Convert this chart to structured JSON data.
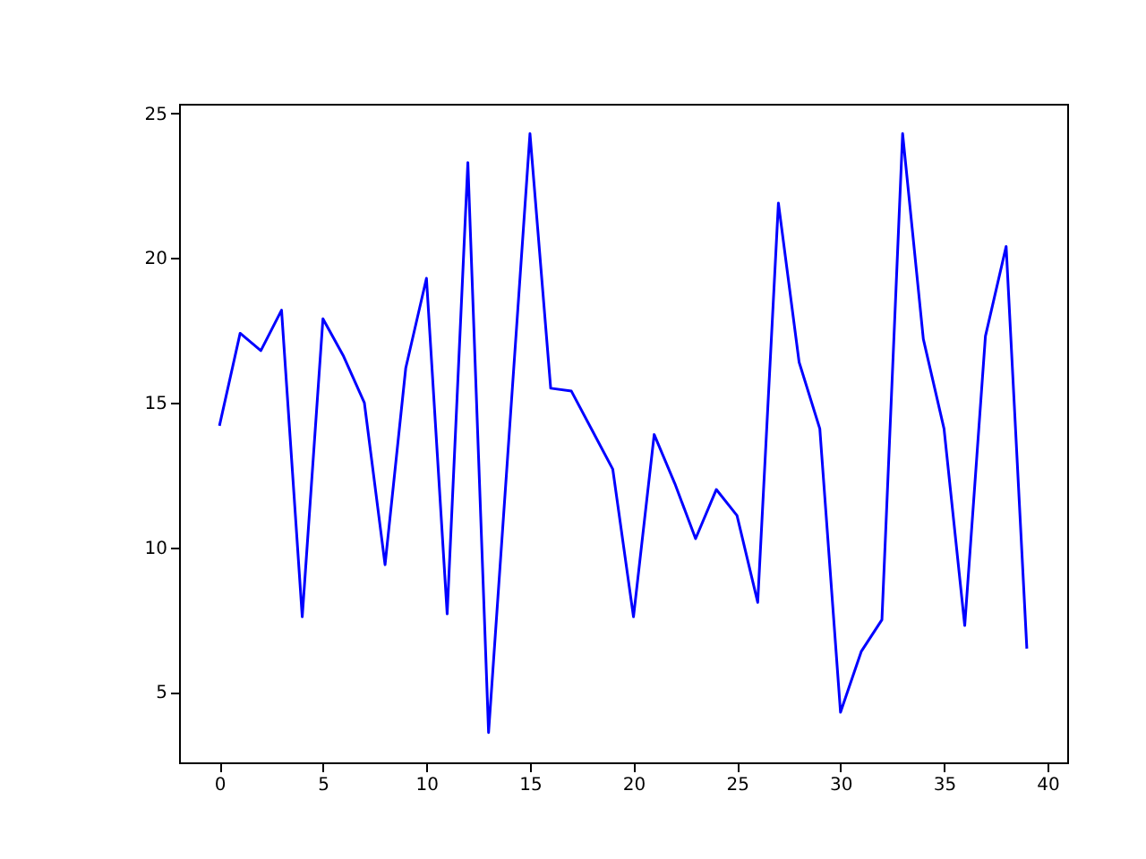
{
  "chart_data": {
    "type": "line",
    "x": [
      0,
      1,
      2,
      3,
      4,
      5,
      6,
      7,
      8,
      9,
      10,
      11,
      12,
      13,
      14,
      15,
      16,
      17,
      18,
      19,
      20,
      21,
      22,
      23,
      24,
      25,
      26,
      27,
      28,
      29,
      30,
      31,
      32,
      33,
      34,
      35,
      36,
      37,
      38,
      39
    ],
    "series": [
      {
        "color": "#0000ff",
        "values": [
          14.2,
          17.4,
          16.8,
          18.2,
          7.6,
          17.9,
          16.6,
          15.0,
          9.4,
          16.2,
          19.3,
          7.7,
          23.3,
          3.6,
          13.95,
          24.3,
          15.5,
          15.4,
          14.05,
          12.7,
          7.6,
          13.9,
          12.2,
          10.3,
          12.0,
          11.1,
          8.1,
          21.9,
          16.4,
          14.1,
          4.3,
          6.4,
          7.5,
          24.3,
          17.2,
          14.1,
          7.3,
          17.3,
          20.4,
          6.5
        ]
      }
    ],
    "xlim": [
      -1.95,
      40.95
    ],
    "xticks": [
      0,
      5,
      10,
      15,
      20,
      25,
      30,
      35,
      40
    ],
    "ylim": [
      2.57,
      25.33
    ],
    "yticks": [
      5,
      10,
      15,
      20,
      25
    ],
    "grid": false,
    "marker": "none",
    "line_style": "solid"
  }
}
